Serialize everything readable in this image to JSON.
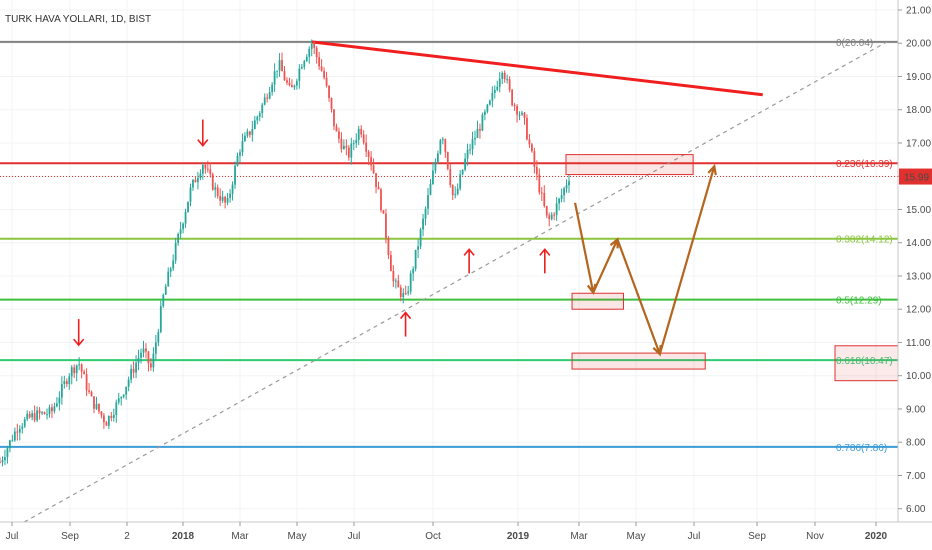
{
  "header": {
    "title": "TURK HAVA YOLLARI, 1D, BIST"
  },
  "chart_data": {
    "type": "candlestick",
    "title": "TURK HAVA YOLLARI, 1D, BIST",
    "ylim": [
      5.6,
      21.3
    ],
    "y_ticks": [
      "6.00",
      "7.00",
      "8.00",
      "9.00",
      "10.00",
      "11.00",
      "12.00",
      "13.00",
      "14.00",
      "15.00",
      "16.00",
      "17.00",
      "18.00",
      "19.00",
      "20.00",
      "21.00"
    ],
    "x_ticks": [
      "Jul",
      "Sep",
      "2",
      "2018",
      "Mar",
      "May",
      "Jul",
      "Oct",
      "2019",
      "Mar",
      "May",
      "Jul",
      "Sep",
      "Nov",
      "2020"
    ],
    "x_bold": [
      "2018",
      "2019",
      "2020"
    ],
    "last_price": {
      "label": "15.99",
      "value": 15.99,
      "color": "#e0312f"
    },
    "fib_levels": [
      {
        "label": "0(20.04)",
        "value": 20.04,
        "color": "#808080"
      },
      {
        "label": "0.236(16.39)",
        "value": 16.39,
        "color": "#e0312f"
      },
      {
        "label": "0.382(14.12)",
        "value": 14.12,
        "color": "#8bc53f"
      },
      {
        "label": "0.5(12.29)",
        "value": 12.29,
        "color": "#3dbf3d"
      },
      {
        "label": "0.618(10.47)",
        "value": 10.47,
        "color": "#2ecc71"
      },
      {
        "label": "0.786(7.86)",
        "value": 7.86,
        "color": "#3b9bd6"
      }
    ],
    "price_path": [
      [
        2017.46,
        7.4
      ],
      [
        2017.52,
        8.5
      ],
      [
        2017.57,
        8.8
      ],
      [
        2017.63,
        8.9
      ],
      [
        2017.69,
        10.1
      ],
      [
        2017.72,
        10.4
      ],
      [
        2017.76,
        9.3
      ],
      [
        2017.81,
        8.6
      ],
      [
        2017.85,
        9.2
      ],
      [
        2017.89,
        10.0
      ],
      [
        2017.93,
        10.8
      ],
      [
        2017.96,
        10.2
      ],
      [
        2018.0,
        12.4
      ],
      [
        2018.05,
        14.2
      ],
      [
        2018.09,
        15.6
      ],
      [
        2018.13,
        16.4
      ],
      [
        2018.17,
        15.6
      ],
      [
        2018.21,
        15.1
      ],
      [
        2018.25,
        16.8
      ],
      [
        2018.29,
        17.4
      ],
      [
        2018.33,
        18.2
      ],
      [
        2018.38,
        19.4
      ],
      [
        2018.42,
        18.5
      ],
      [
        2018.46,
        19.5
      ],
      [
        2018.49,
        20.0
      ],
      [
        2018.53,
        19.0
      ],
      [
        2018.57,
        17.3
      ],
      [
        2018.61,
        16.6
      ],
      [
        2018.65,
        17.5
      ],
      [
        2018.69,
        16.3
      ],
      [
        2018.72,
        15.1
      ],
      [
        2018.76,
        12.8
      ],
      [
        2018.8,
        12.3
      ],
      [
        2018.84,
        13.9
      ],
      [
        2018.88,
        15.6
      ],
      [
        2018.92,
        17.4
      ],
      [
        2018.96,
        15.2
      ],
      [
        2019.0,
        16.6
      ],
      [
        2019.04,
        17.4
      ],
      [
        2019.08,
        18.2
      ],
      [
        2019.12,
        19.3
      ],
      [
        2019.15,
        18.3
      ],
      [
        2019.19,
        17.7
      ],
      [
        2019.23,
        16.1
      ],
      [
        2019.27,
        14.6
      ],
      [
        2019.31,
        15.3
      ],
      [
        2019.34,
        15.99
      ]
    ],
    "annotations": {
      "trend_lines": [
        {
          "type": "resistance",
          "color": "#f01e1e",
          "from": [
            2018.49,
            20.04
          ],
          "to": [
            2019.98,
            18.45
          ]
        },
        {
          "type": "support-dashed",
          "color": "#9a9a9a",
          "from": [
            2017.54,
            5.6
          ],
          "to": [
            2020.39,
            20.04
          ]
        }
      ],
      "projection_path": {
        "color": "#b5651d",
        "points": [
          [
            2019.36,
            15.2
          ],
          [
            2019.42,
            12.5
          ],
          [
            2019.5,
            14.1
          ],
          [
            2019.64,
            10.65
          ],
          [
            2019.82,
            16.3
          ]
        ]
      },
      "target_boxes": [
        {
          "color": "#e0312f",
          "x": [
            2019.33,
            2019.75
          ],
          "y": [
            16.05,
            16.65
          ]
        },
        {
          "color": "#e0312f",
          "x": [
            2019.35,
            2019.52
          ],
          "y": [
            12.0,
            12.48
          ]
        },
        {
          "color": "#e0312f",
          "x": [
            2019.35,
            2019.79
          ],
          "y": [
            10.2,
            10.68
          ]
        }
      ],
      "arrows_down": [
        [
          2017.72,
          10.5
        ],
        [
          2018.13,
          16.5
        ]
      ],
      "arrows_up": [
        [
          2018.8,
          12.2
        ],
        [
          2019.01,
          14.1
        ],
        [
          2019.26,
          14.1
        ]
      ]
    }
  }
}
